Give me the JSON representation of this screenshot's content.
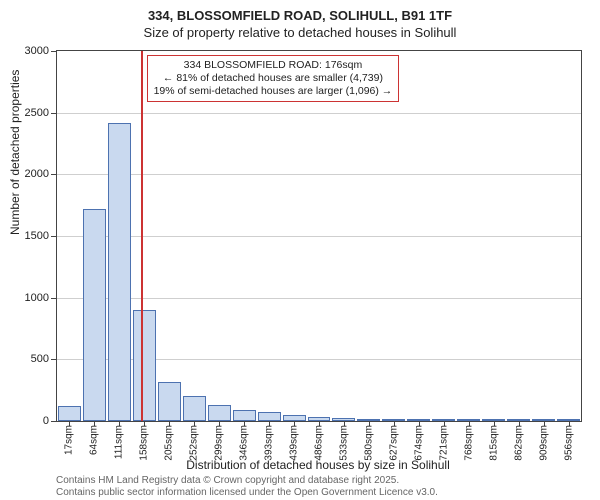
{
  "title": {
    "line1": "334, BLOSSOMFIELD ROAD, SOLIHULL, B91 1TF",
    "line2": "Size of property relative to detached houses in Solihull"
  },
  "chart": {
    "type": "histogram",
    "background_color": "#ffffff",
    "grid_color": "#cfcfcf",
    "bar_fill": "#c9d9ef",
    "bar_stroke": "#4d72b0",
    "axis_color": "#444444",
    "text_color": "#222222",
    "y": {
      "title": "Number of detached properties",
      "min": 0,
      "max": 3000,
      "step": 500,
      "ticks": [
        0,
        500,
        1000,
        1500,
        2000,
        2500,
        3000
      ]
    },
    "x": {
      "title": "Distribution of detached houses by size in Solihull",
      "labels": [
        "17sqm",
        "64sqm",
        "111sqm",
        "158sqm",
        "205sqm",
        "252sqm",
        "299sqm",
        "346sqm",
        "393sqm",
        "439sqm",
        "486sqm",
        "533sqm",
        "580sqm",
        "627sqm",
        "674sqm",
        "721sqm",
        "768sqm",
        "815sqm",
        "862sqm",
        "909sqm",
        "956sqm"
      ]
    },
    "values": [
      120,
      1720,
      2420,
      900,
      320,
      200,
      130,
      90,
      70,
      50,
      35,
      28,
      20,
      15,
      12,
      10,
      8,
      6,
      4,
      3,
      2
    ],
    "marker": {
      "color": "#cc3333",
      "position_index": 3.35,
      "lines": [
        "334 BLOSSOMFIELD ROAD: 176sqm",
        "← 81% of detached houses are smaller (4,739)",
        "19% of semi-detached houses are larger (1,096) →"
      ]
    }
  },
  "footer": {
    "line1": "Contains HM Land Registry data © Crown copyright and database right 2025.",
    "line2": "Contains public sector information licensed under the Open Government Licence v3.0."
  }
}
